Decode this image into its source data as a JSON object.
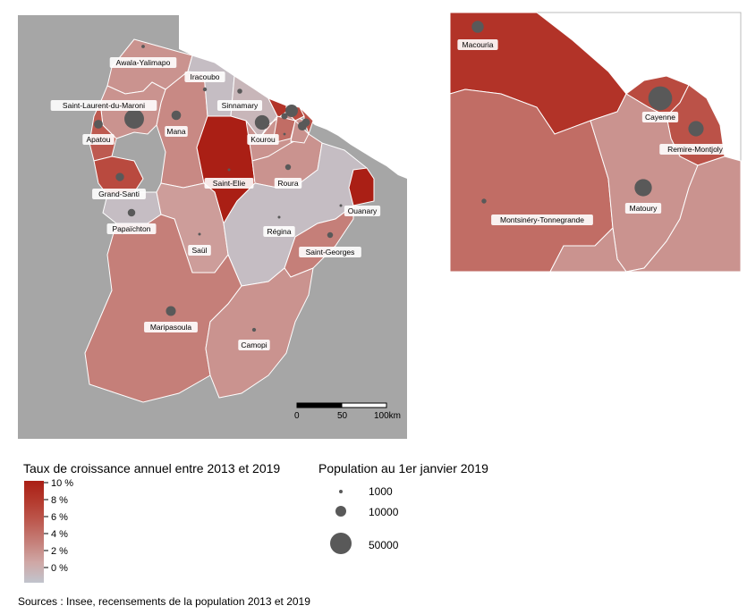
{
  "communes": [
    {
      "name": "Awala-Yalimapo",
      "rate": 3.0,
      "population": 1400
    },
    {
      "name": "Iracoubo",
      "rate": 0.5,
      "population": 1900
    },
    {
      "name": "Sinnamary",
      "rate": 1.0,
      "population": 3000
    },
    {
      "name": "Saint-Laurent-du-Maroni",
      "rate": 3.0,
      "population": 47000
    },
    {
      "name": "Mana",
      "rate": 3.5,
      "population": 11000
    },
    {
      "name": "Apatou",
      "rate": 6.0,
      "population": 9500
    },
    {
      "name": "Kourou",
      "rate": 3.0,
      "population": 26000
    },
    {
      "name": "Grand-Santi",
      "rate": 7.0,
      "population": 8500
    },
    {
      "name": "Saint-Elie",
      "rate": 10.0,
      "population": 100
    },
    {
      "name": "Roura",
      "rate": 3.0,
      "population": 4000
    },
    {
      "name": "Papaïchton",
      "rate": 0.5,
      "population": 7000
    },
    {
      "name": "Régina",
      "rate": 0.5,
      "population": 700
    },
    {
      "name": "Ouanary",
      "rate": 10.0,
      "population": 200
    },
    {
      "name": "Saül",
      "rate": 2.5,
      "population": 150
    },
    {
      "name": "Saint-Georges",
      "rate": 4.0,
      "population": 4100
    },
    {
      "name": "Maripasoula",
      "rate": 4.0,
      "population": 12000
    },
    {
      "name": "Camopi",
      "rate": 3.0,
      "population": 1800
    },
    {
      "name": "Macouria",
      "rate": 8.5,
      "population": 16000
    },
    {
      "name": "Montsinéry-Tonnegrande",
      "rate": 5.0,
      "population": 2600
    },
    {
      "name": "Cayenne",
      "rate": 7.0,
      "population": 63000
    },
    {
      "name": "Remire-Montjoly",
      "rate": 6.5,
      "population": 26000
    },
    {
      "name": "Matoury",
      "rate": 3.0,
      "population": 33000
    }
  ],
  "scale_bar": {
    "ticks": [
      "0",
      "50",
      "100km"
    ]
  },
  "legend_rate": {
    "title": "Taux de croissance annuel entre 2013 et 2019",
    "ticks": [
      "10 %",
      "8 %",
      "6 %",
      "4 %",
      "2 %",
      "0 %"
    ]
  },
  "legend_population": {
    "title": "Population au 1er janvier 2019",
    "items": [
      "1000",
      "10000",
      "50000"
    ]
  },
  "colors": {
    "background": "#ffffff",
    "land": "#a6a6a6",
    "symbol": "#595959",
    "border": "#ffffff",
    "ramp": [
      "#c1c4cd",
      "#cfa7a5",
      "#c57f79",
      "#bd5a50",
      "#b43a2e",
      "#aa1f15"
    ]
  },
  "source": "Sources : Insee, recensements de la population 2013 et 2019"
}
